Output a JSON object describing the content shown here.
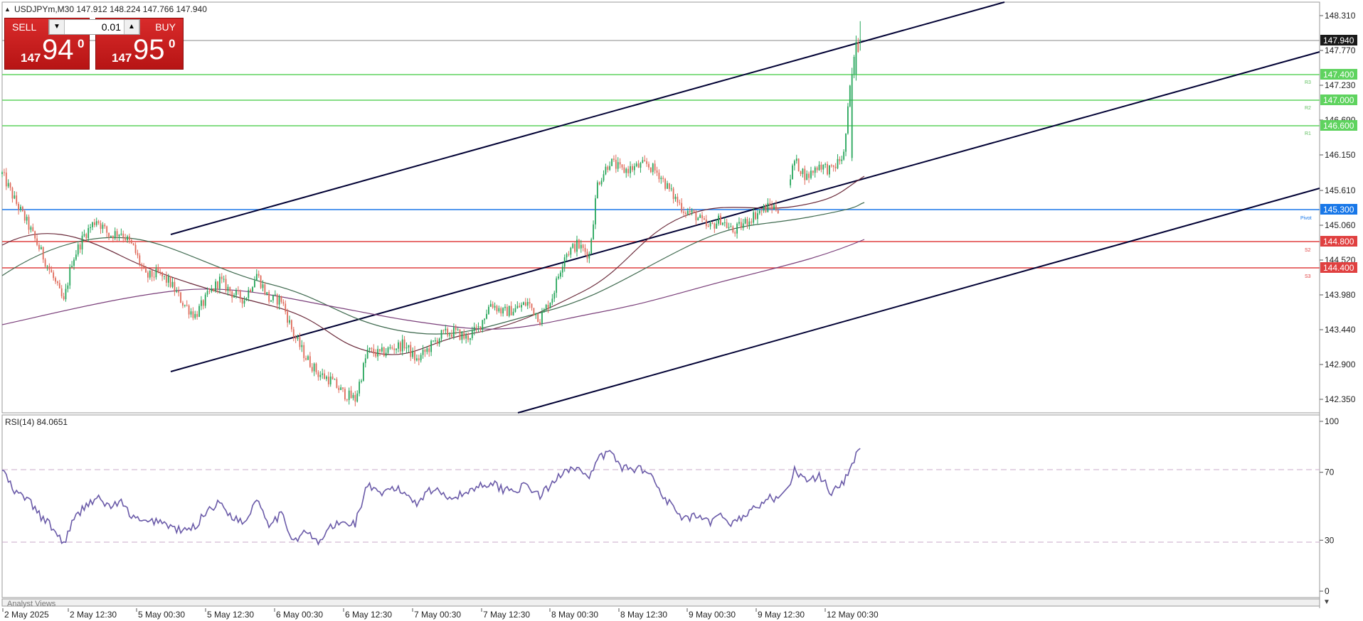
{
  "header": {
    "symbol_line": "USDJPYm,M30  147.912 148.224 147.766 147.940"
  },
  "trade_panel": {
    "sell_label": "SELL",
    "buy_label": "BUY",
    "volume": "0.01",
    "sell_price_small": "147",
    "sell_price_big": "94",
    "sell_price_sup": "0",
    "buy_price_small": "147",
    "buy_price_big": "95",
    "buy_price_sup": "0"
  },
  "main_axis": {
    "ticks": [
      "148.310",
      "147.770",
      "147.230",
      "146.690",
      "146.150",
      "145.610",
      "145.060",
      "144.520",
      "143.980",
      "143.440",
      "142.900",
      "142.350"
    ]
  },
  "price_tags": [
    {
      "name": "current-price-tag",
      "text": "147.940",
      "bg": "#1a1a1a",
      "fg": "#ffffff"
    },
    {
      "name": "r3-price-tag",
      "text": "147.400",
      "bg": "#5fd35f",
      "fg": "#ffffff"
    },
    {
      "name": "r2-price-tag",
      "text": "147.000",
      "bg": "#5fd35f",
      "fg": "#ffffff"
    },
    {
      "name": "r1-price-tag",
      "text": "146.600",
      "bg": "#5fd35f",
      "fg": "#ffffff"
    },
    {
      "name": "pivot-price-tag",
      "text": "145.300",
      "bg": "#1877e8",
      "fg": "#ffffff"
    },
    {
      "name": "s2-price-tag",
      "text": "144.800",
      "bg": "#e04040",
      "fg": "#ffffff"
    },
    {
      "name": "s3-price-tag",
      "text": "144.400",
      "bg": "#e04040",
      "fg": "#ffffff"
    }
  ],
  "level_labels": [
    {
      "name": "r3-label",
      "text": "R3"
    },
    {
      "name": "r2-label",
      "text": "R2"
    },
    {
      "name": "r1-label",
      "text": "R1"
    },
    {
      "name": "pivot-label",
      "text": "Pivot"
    },
    {
      "name": "s2-label",
      "text": "S2"
    },
    {
      "name": "s3-label",
      "text": "S3"
    }
  ],
  "rsi": {
    "label": "RSI(14) 84.0651",
    "ticks": [
      "100",
      "70",
      "30",
      "0"
    ]
  },
  "time_axis": {
    "labels": [
      "2 May 2025",
      "2 May 12:30",
      "5 May 00:30",
      "5 May 12:30",
      "6 May 00:30",
      "6 May 12:30",
      "7 May 00:30",
      "7 May 12:30",
      "8 May 00:30",
      "8 May 12:30",
      "9 May 00:30",
      "9 May 12:30",
      "12 May 00:30"
    ]
  },
  "analyst_views_label": "Analyst Views",
  "colors": {
    "bull": "#26a65b",
    "bear": "#e06b5b",
    "channel": "#000033",
    "rsi_line": "#6a5aa8",
    "resistance": "#5fd35f",
    "pivot": "#1877e8",
    "support": "#e04040"
  },
  "chart_data": {
    "type": "candlestick",
    "symbol": "USDJPYm",
    "timeframe": "M30",
    "ohlc_last": {
      "open": 147.912,
      "high": 148.224,
      "low": 147.766,
      "close": 147.94
    },
    "ylim": [
      142.2,
      148.45
    ],
    "levels": {
      "R3": 147.4,
      "R2": 147.0,
      "R1": 146.6,
      "Pivot": 145.3,
      "S2": 144.8,
      "S3": 144.4,
      "current": 147.94
    },
    "close_path": [
      [
        0,
        145.85
      ],
      [
        6,
        145.45
      ],
      [
        12,
        145.1
      ],
      [
        18,
        144.7
      ],
      [
        24,
        144.3
      ],
      [
        30,
        143.85
      ],
      [
        34,
        144.5
      ],
      [
        40,
        144.9
      ],
      [
        46,
        145.15
      ],
      [
        52,
        144.9
      ],
      [
        58,
        144.95
      ],
      [
        64,
        144.7
      ],
      [
        70,
        144.25
      ],
      [
        76,
        144.3
      ],
      [
        82,
        144.15
      ],
      [
        88,
        143.85
      ],
      [
        94,
        143.65
      ],
      [
        100,
        143.95
      ],
      [
        106,
        144.2
      ],
      [
        112,
        144.0
      ],
      [
        118,
        143.9
      ],
      [
        124,
        144.3
      ],
      [
        130,
        143.9
      ],
      [
        136,
        143.9
      ],
      [
        142,
        143.35
      ],
      [
        148,
        143.0
      ],
      [
        154,
        142.75
      ],
      [
        160,
        142.65
      ],
      [
        166,
        142.45
      ],
      [
        172,
        142.35
      ],
      [
        178,
        143.1
      ],
      [
        184,
        143.05
      ],
      [
        190,
        143.15
      ],
      [
        196,
        143.2
      ],
      [
        202,
        142.95
      ],
      [
        208,
        143.15
      ],
      [
        214,
        143.35
      ],
      [
        220,
        143.4
      ],
      [
        226,
        143.3
      ],
      [
        232,
        143.45
      ],
      [
        238,
        143.85
      ],
      [
        244,
        143.7
      ],
      [
        250,
        143.75
      ],
      [
        256,
        143.85
      ],
      [
        262,
        143.6
      ],
      [
        268,
        143.95
      ],
      [
        274,
        144.6
      ],
      [
        280,
        144.75
      ],
      [
        286,
        144.6
      ],
      [
        290,
        145.7
      ],
      [
        296,
        146.05
      ],
      [
        302,
        145.9
      ],
      [
        308,
        145.95
      ],
      [
        314,
        146.0
      ],
      [
        320,
        145.85
      ],
      [
        326,
        145.55
      ],
      [
        332,
        145.3
      ],
      [
        338,
        145.2
      ],
      [
        344,
        145.0
      ],
      [
        350,
        145.15
      ],
      [
        356,
        144.95
      ],
      [
        362,
        145.1
      ],
      [
        368,
        145.25
      ],
      [
        374,
        145.35
      ],
      [
        380,
        145.3
      ],
      [
        386,
        146.05
      ],
      [
        392,
        145.8
      ],
      [
        398,
        146.0
      ],
      [
        404,
        145.9
      ],
      [
        410,
        146.15
      ],
      [
        414,
        147.5
      ],
      [
        418,
        147.94
      ]
    ],
    "rsi_path": [
      [
        0,
        72
      ],
      [
        6,
        58
      ],
      [
        12,
        55
      ],
      [
        18,
        45
      ],
      [
        24,
        38
      ],
      [
        30,
        28
      ],
      [
        34,
        40
      ],
      [
        40,
        50
      ],
      [
        46,
        55
      ],
      [
        52,
        50
      ],
      [
        58,
        52
      ],
      [
        64,
        43
      ],
      [
        70,
        40
      ],
      [
        76,
        42
      ],
      [
        82,
        38
      ],
      [
        88,
        35
      ],
      [
        94,
        38
      ],
      [
        100,
        48
      ],
      [
        106,
        52
      ],
      [
        112,
        44
      ],
      [
        118,
        40
      ],
      [
        124,
        55
      ],
      [
        130,
        40
      ],
      [
        136,
        45
      ],
      [
        142,
        30
      ],
      [
        148,
        35
      ],
      [
        154,
        28
      ],
      [
        160,
        38
      ],
      [
        166,
        40
      ],
      [
        172,
        40
      ],
      [
        178,
        63
      ],
      [
        184,
        56
      ],
      [
        190,
        61
      ],
      [
        196,
        58
      ],
      [
        202,
        52
      ],
      [
        208,
        60
      ],
      [
        214,
        58
      ],
      [
        220,
        55
      ],
      [
        226,
        58
      ],
      [
        232,
        62
      ],
      [
        238,
        64
      ],
      [
        244,
        60
      ],
      [
        250,
        60
      ],
      [
        256,
        62
      ],
      [
        262,
        56
      ],
      [
        268,
        63
      ],
      [
        274,
        72
      ],
      [
        280,
        73
      ],
      [
        286,
        65
      ],
      [
        290,
        78
      ],
      [
        296,
        82
      ],
      [
        302,
        73
      ],
      [
        308,
        72
      ],
      [
        314,
        72
      ],
      [
        320,
        60
      ],
      [
        326,
        50
      ],
      [
        332,
        42
      ],
      [
        338,
        44
      ],
      [
        344,
        40
      ],
      [
        350,
        44
      ],
      [
        356,
        40
      ],
      [
        362,
        45
      ],
      [
        368,
        50
      ],
      [
        374,
        55
      ],
      [
        380,
        52
      ],
      [
        386,
        72
      ],
      [
        392,
        64
      ],
      [
        398,
        68
      ],
      [
        404,
        58
      ],
      [
        410,
        65
      ],
      [
        414,
        75
      ],
      [
        418,
        84.07
      ]
    ],
    "rsi_levels": [
      70,
      30
    ],
    "rsi_ylim": [
      0,
      100
    ]
  }
}
